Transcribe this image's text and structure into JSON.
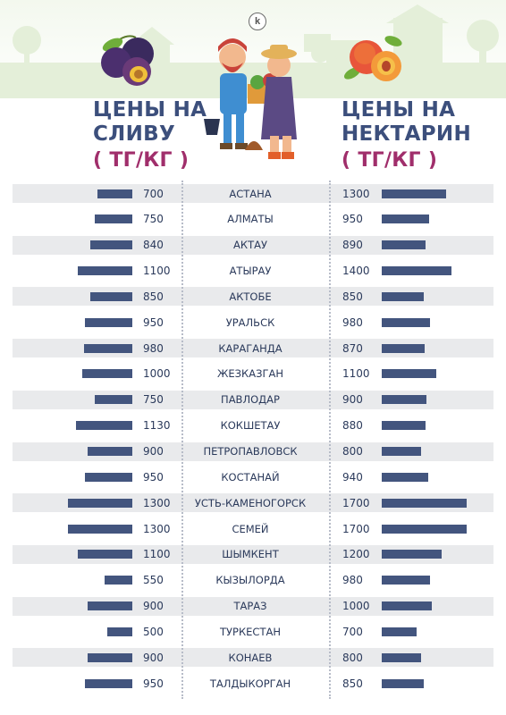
{
  "logo": {
    "letter": "k"
  },
  "left_header": {
    "line1": "ЦЕНЫ НА",
    "line2": "СЛИВУ",
    "unit": "( ТГ/КГ )"
  },
  "right_header": {
    "line1": "ЦЕНЫ НА",
    "line2": "НЕКТАРИН",
    "unit": "( ТГ/КГ )"
  },
  "colors": {
    "bar": "#43557e",
    "title": "#3c4f7c",
    "unit": "#a02e6b",
    "stripe": "#e9eaec"
  },
  "icons": [
    "plum-icon",
    "farmers-illustration",
    "nectarine-icon"
  ],
  "chart_data": {
    "type": "bar",
    "orientation": "horizontal",
    "categories": [
      "АСТАНА",
      "АЛМАТЫ",
      "АКТАУ",
      "АТЫРАУ",
      "АКТОБЕ",
      "УРАЛЬСК",
      "КАРАГАНДА",
      "ЖЕЗКАЗГАН",
      "ПАВЛОДАР",
      "КОКШЕТАУ",
      "ПЕТРОПАВЛОВСК",
      "КОСТАНАЙ",
      "УСТЬ-КАМЕНОГОРСК",
      "СЕМЕЙ",
      "ШЫМКЕНТ",
      "КЫЗЫЛОРДА",
      "ТАРАЗ",
      "ТУРКЕСТАН",
      "КОНАЕВ",
      "ТАЛДЫКОРГАН"
    ],
    "series": [
      {
        "name": "СЛИВУ",
        "values": [
          700,
          750,
          840,
          1100,
          850,
          950,
          980,
          1000,
          750,
          1130,
          900,
          950,
          1300,
          1300,
          1100,
          550,
          900,
          500,
          900,
          950
        ]
      },
      {
        "name": "НЕКТАРИН",
        "values": [
          1300,
          950,
          890,
          1400,
          850,
          980,
          870,
          1100,
          900,
          880,
          800,
          940,
          1700,
          1700,
          1200,
          980,
          1000,
          700,
          800,
          850
        ]
      }
    ],
    "grid": false,
    "legend": "none"
  }
}
